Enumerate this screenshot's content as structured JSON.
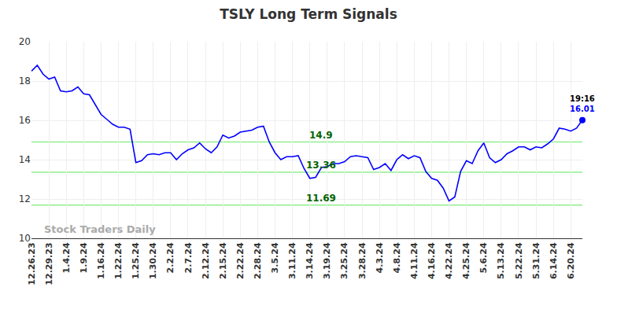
{
  "chart_data": {
    "type": "line",
    "title": "TSLY Long Term Signals",
    "categories": [
      "12.26.23",
      null,
      null,
      "12.29.23",
      null,
      null,
      "1.4.24",
      null,
      null,
      "1.9.24",
      null,
      null,
      "1.16.24",
      null,
      null,
      "1.22.24",
      null,
      null,
      "1.25.24",
      null,
      null,
      "1.30.24",
      null,
      null,
      "2.2.24",
      null,
      null,
      "2.7.24",
      null,
      null,
      "2.12.24",
      null,
      null,
      "2.15.24",
      null,
      null,
      "2.22.24",
      null,
      null,
      "2.28.24",
      null,
      null,
      "3.5.24",
      null,
      null,
      "3.11.24",
      null,
      null,
      "3.14.24",
      null,
      null,
      "3.19.24",
      null,
      null,
      "3.25.24",
      null,
      null,
      "3.28.24",
      null,
      null,
      "4.3.24",
      null,
      null,
      "4.8.24",
      null,
      null,
      "4.11.24",
      null,
      null,
      "4.16.24",
      null,
      null,
      "4.22.24",
      null,
      null,
      "4.25.24",
      null,
      null,
      "5.6.24",
      null,
      null,
      "5.13.24",
      null,
      null,
      "5.22.24",
      null,
      null,
      "5.31.24",
      null,
      null,
      "6.14.24",
      null,
      null,
      "6.20.24",
      null,
      null
    ],
    "values": [
      18.5,
      18.8,
      18.35,
      18.1,
      18.2,
      17.5,
      17.45,
      17.5,
      17.7,
      17.35,
      17.3,
      16.8,
      16.3,
      16.05,
      15.8,
      15.65,
      15.65,
      15.55,
      13.85,
      13.95,
      14.25,
      14.3,
      14.25,
      14.35,
      14.35,
      14.0,
      14.3,
      14.5,
      14.6,
      14.85,
      14.55,
      14.35,
      14.65,
      15.25,
      15.1,
      15.2,
      15.4,
      15.45,
      15.5,
      15.65,
      15.7,
      14.9,
      14.35,
      14.0,
      14.15,
      14.15,
      14.2,
      13.55,
      13.05,
      13.1,
      13.6,
      13.65,
      13.8,
      13.8,
      13.9,
      14.15,
      14.2,
      14.15,
      14.1,
      13.5,
      13.6,
      13.8,
      13.45,
      14.0,
      14.25,
      14.05,
      14.2,
      14.1,
      13.4,
      13.05,
      12.95,
      12.55,
      11.9,
      12.1,
      13.4,
      13.95,
      13.8,
      14.45,
      14.85,
      14.1,
      13.85,
      14.0,
      14.3,
      14.45,
      14.65,
      14.65,
      14.5,
      14.65,
      14.6,
      14.8,
      15.05,
      15.6,
      15.55,
      15.45,
      15.6,
      16.01
    ],
    "color": "#0000ff",
    "ylim": [
      10,
      20
    ],
    "yticks": [
      10,
      12,
      14,
      16,
      18,
      20
    ],
    "grid": true,
    "levels": [
      14.9,
      13.36,
      11.69
    ],
    "level_color": "#90ee90",
    "level_label_color": "#006400",
    "last_point": {
      "time": "19:16",
      "value": 16.01
    },
    "watermark": "Stock Traders Daily"
  }
}
